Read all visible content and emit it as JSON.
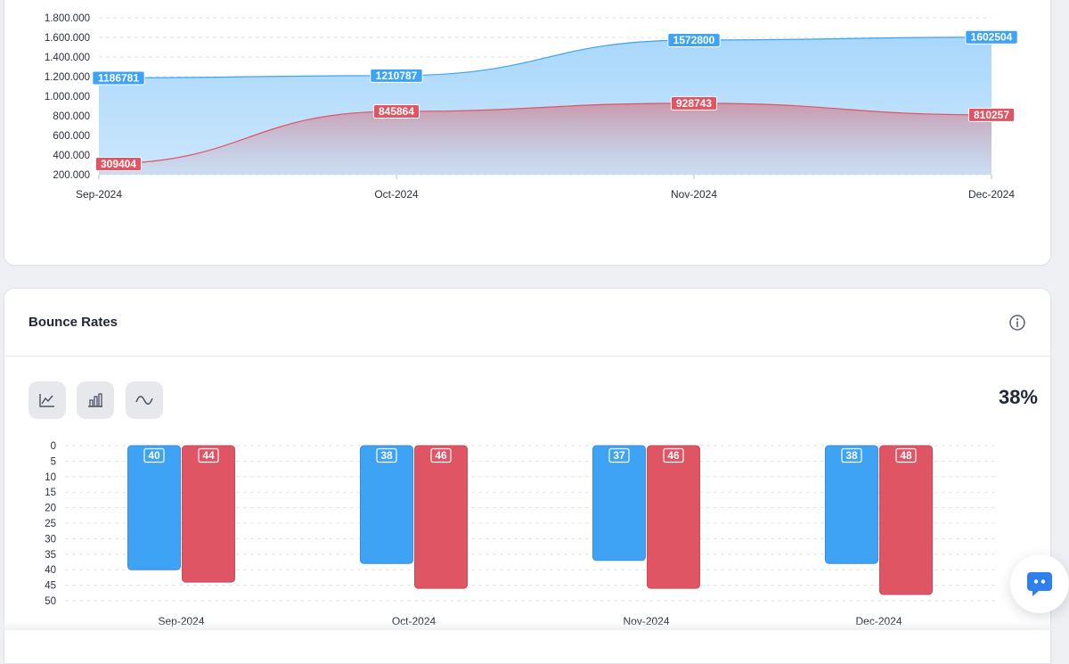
{
  "colors": {
    "blue": "#3ea3f5",
    "red": "#e05564",
    "grid": "#dfe3ea",
    "label_text": "#ffffff"
  },
  "bounce_card": {
    "title": "Bounce Rates",
    "info_icon": "info-icon",
    "chart_type_buttons": [
      {
        "icon": "line-chart-icon"
      },
      {
        "icon": "bar-chart-icon"
      },
      {
        "icon": "spline-chart-icon"
      }
    ],
    "summary_value": "38%"
  },
  "chat_button": {
    "icon": "chat-icon"
  },
  "chart_data": [
    {
      "type": "area",
      "categories": [
        "Sep-2024",
        "Oct-2024",
        "Nov-2024",
        "Dec-2024"
      ],
      "ylim": [
        200000,
        1800000
      ],
      "yticks": [
        "200.000",
        "400.000",
        "600.000",
        "800.000",
        "1.000.000",
        "1.200.000",
        "1.400.000",
        "1.600.000",
        "1.800.000"
      ],
      "ytick_values": [
        200000,
        400000,
        600000,
        800000,
        1000000,
        1200000,
        1400000,
        1600000,
        1800000
      ],
      "grid": true,
      "series": [
        {
          "values": [
            1186781,
            1210787,
            1572800,
            1602504
          ],
          "color": "#3ea3f5"
        },
        {
          "values": [
            309404,
            845864,
            928743,
            810257
          ],
          "color": "#e05564"
        }
      ]
    },
    {
      "type": "bar",
      "categories": [
        "Sep-2024",
        "Oct-2024",
        "Nov-2024",
        "Dec-2024"
      ],
      "ylim": [
        0,
        50
      ],
      "y_reversed": true,
      "yticks": [
        "0",
        "5",
        "10",
        "15",
        "20",
        "25",
        "30",
        "35",
        "40",
        "45",
        "50"
      ],
      "ytick_values": [
        0,
        5,
        10,
        15,
        20,
        25,
        30,
        35,
        40,
        45,
        50
      ],
      "grid": true,
      "series": [
        {
          "values": [
            40,
            38,
            37,
            38
          ],
          "color": "#3ea3f5"
        },
        {
          "values": [
            44,
            46,
            46,
            48
          ],
          "color": "#e05564"
        }
      ]
    }
  ]
}
